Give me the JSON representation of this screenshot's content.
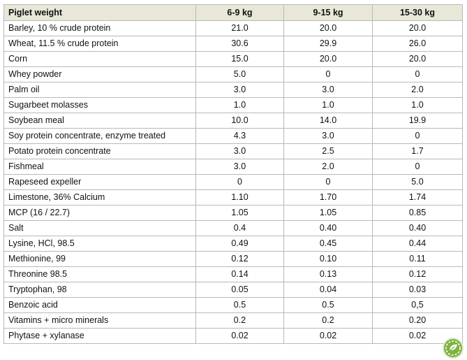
{
  "table": {
    "headers": [
      "Piglet weight",
      "6-9 kg",
      "9-15 kg",
      "15-30 kg"
    ],
    "rows": [
      {
        "ingredient": "Barley, 10 % crude protein",
        "v1": "21.0",
        "v2": "20.0",
        "v3": "20.0"
      },
      {
        "ingredient": "Wheat, 11.5 % crude protein",
        "v1": "30.6",
        "v2": "29.9",
        "v3": "26.0"
      },
      {
        "ingredient": "Corn",
        "v1": "15.0",
        "v2": "20.0",
        "v3": "20.0"
      },
      {
        "ingredient": "Whey powder",
        "v1": "5.0",
        "v2": "0",
        "v3": "0"
      },
      {
        "ingredient": "Palm oil",
        "v1": "3.0",
        "v2": "3.0",
        "v3": "2.0"
      },
      {
        "ingredient": "Sugarbeet molasses",
        "v1": "1.0",
        "v2": "1.0",
        "v3": "1.0"
      },
      {
        "ingredient": "Soybean meal",
        "v1": "10.0",
        "v2": "14.0",
        "v3": "19.9"
      },
      {
        "ingredient": "Soy protein concentrate, enzyme treated",
        "v1": "4.3",
        "v2": "3.0",
        "v3": "0"
      },
      {
        "ingredient": "Potato protein concentrate",
        "v1": "3.0",
        "v2": "2.5",
        "v3": "1.7"
      },
      {
        "ingredient": "Fishmeal",
        "v1": "3.0",
        "v2": "2.0",
        "v3": "0"
      },
      {
        "ingredient": "Rapeseed expeller",
        "v1": "0",
        "v2": "0",
        "v3": "5.0"
      },
      {
        "ingredient": "Limestone, 36% Calcium",
        "v1": "1.10",
        "v2": "1.70",
        "v3": "1.74"
      },
      {
        "ingredient": "MCP (16 / 22.7)",
        "v1": "1.05",
        "v2": "1.05",
        "v3": "0.85"
      },
      {
        "ingredient": "Salt",
        "v1": "0.4",
        "v2": "0.40",
        "v3": "0.40"
      },
      {
        "ingredient": "Lysine, HCl, 98.5",
        "v1": "0.49",
        "v2": "0.45",
        "v3": "0.44"
      },
      {
        "ingredient": "Methionine, 99",
        "v1": "0.12",
        "v2": "0.10",
        "v3": "0.11"
      },
      {
        "ingredient": "Threonine 98.5",
        "v1": "0.14",
        "v2": "0.13",
        "v3": "0.12"
      },
      {
        "ingredient": "Tryptophan, 98",
        "v1": "0.05",
        "v2": "0.04",
        "v3": "0.03"
      },
      {
        "ingredient": "Benzoic acid",
        "v1": "0.5",
        "v2": "0.5",
        "v3": "0,5"
      },
      {
        "ingredient": "Vitamins + micro minerals",
        "v1": "0.2",
        "v2": "0.2",
        "v3": "0.20"
      },
      {
        "ingredient": "Phytase + xylanase",
        "v1": "0.02",
        "v2": "0.02",
        "v3": "0.02"
      }
    ]
  },
  "colors": {
    "header_background": "#e8e7d8",
    "grid_line": "#b9b9b9",
    "logo_green": "#7fb241"
  },
  "logo": {
    "icon": "leaf-logo-icon"
  }
}
